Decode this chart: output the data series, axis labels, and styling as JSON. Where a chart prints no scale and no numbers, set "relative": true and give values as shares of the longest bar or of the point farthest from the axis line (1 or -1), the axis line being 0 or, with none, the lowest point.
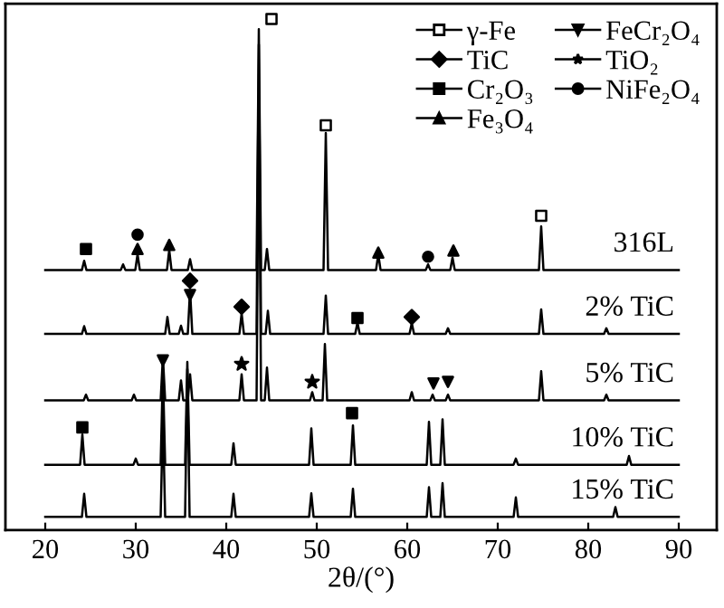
{
  "chart_data": {
    "type": "line",
    "relative": true,
    "xlabel": "2θ/(°)",
    "xlim": [
      15.6,
      94.2
    ],
    "xticks": [
      20,
      30,
      40,
      50,
      60,
      70,
      80,
      90
    ],
    "tick_labels": "x",
    "grid": false,
    "legend": "top right",
    "line_style": "solid",
    "marker": "none",
    "series": [
      {
        "name": "316L",
        "color": "#000000",
        "x": [
          20,
          24.05,
          24.3,
          24.55,
          28.35,
          28.6,
          28.85,
          29.95,
          30.2,
          30.45,
          33.45,
          33.7,
          33.95,
          35.75,
          36.0,
          36.25,
          43.35,
          43.6,
          43.85,
          44.25,
          44.5,
          44.75,
          50.75,
          51.0,
          51.25,
          56.55,
          56.8,
          57.05,
          62.05,
          62.3,
          62.55,
          64.75,
          65.0,
          65.25,
          74.55,
          74.8,
          75.05,
          90
        ],
        "values": [
          0.509,
          0.509,
          0.527,
          0.509,
          0.509,
          0.52,
          0.509,
          0.509,
          0.54,
          0.509,
          0.509,
          0.548,
          0.509,
          0.509,
          0.53,
          0.509,
          0.509,
          0.98,
          0.509,
          0.509,
          0.55,
          0.509,
          0.509,
          0.777,
          0.509,
          0.509,
          0.54,
          0.509,
          0.509,
          0.52,
          0.509,
          0.509,
          0.533,
          0.509,
          0.509,
          0.594,
          0.509,
          0.509
        ]
      },
      {
        "name": "2% TiC",
        "color": "#000000",
        "x": [
          20,
          24.05,
          24.3,
          24.55,
          33.25,
          33.5,
          33.75,
          34.75,
          35.0,
          35.25,
          35.75,
          36.0,
          36.25,
          41.45,
          41.7,
          41.95,
          43.35,
          43.6,
          43.85,
          44.35,
          44.6,
          44.85,
          50.75,
          51.0,
          51.25,
          54.25,
          54.5,
          54.75,
          60.25,
          60.5,
          60.75,
          64.25,
          64.5,
          64.75,
          74.55,
          74.8,
          75.05,
          81.75,
          82.0,
          82.25,
          90
        ],
        "values": [
          0.384,
          0.384,
          0.399,
          0.384,
          0.384,
          0.417,
          0.384,
          0.384,
          0.4,
          0.384,
          0.384,
          0.47,
          0.384,
          0.384,
          0.424,
          0.384,
          0.384,
          0.95,
          0.384,
          0.384,
          0.429,
          0.384,
          0.384,
          0.459,
          0.384,
          0.384,
          0.406,
          0.384,
          0.384,
          0.405,
          0.384,
          0.384,
          0.395,
          0.384,
          0.384,
          0.432,
          0.384,
          0.384,
          0.395,
          0.384,
          0.384
        ]
      },
      {
        "name": "5% TiC",
        "color": "#000000",
        "x": [
          20,
          24.25,
          24.5,
          24.75,
          29.55,
          29.8,
          30.05,
          32.75,
          33.0,
          33.25,
          34.75,
          35.0,
          35.25,
          35.75,
          36.0,
          36.25,
          41.45,
          41.7,
          41.95,
          43.35,
          43.6,
          43.85,
          44.25,
          44.5,
          44.75,
          49.25,
          49.5,
          49.75,
          50.65,
          50.9,
          51.15,
          60.25,
          60.5,
          60.75,
          62.55,
          62.8,
          63.05,
          64.25,
          64.5,
          64.75,
          74.55,
          74.8,
          75.05,
          81.75,
          82.0,
          82.25,
          90
        ],
        "values": [
          0.254,
          0.254,
          0.265,
          0.254,
          0.254,
          0.265,
          0.254,
          0.254,
          0.34,
          0.254,
          0.254,
          0.293,
          0.254,
          0.254,
          0.305,
          0.254,
          0.254,
          0.305,
          0.254,
          0.254,
          0.85,
          0.254,
          0.254,
          0.318,
          0.254,
          0.254,
          0.27,
          0.254,
          0.254,
          0.364,
          0.254,
          0.254,
          0.27,
          0.254,
          0.254,
          0.265,
          0.254,
          0.254,
          0.265,
          0.254,
          0.254,
          0.311,
          0.254,
          0.254,
          0.265,
          0.254,
          0.254
        ]
      },
      {
        "name": "10% TiC",
        "color": "#000000",
        "x": [
          20,
          23.85,
          24.1,
          24.35,
          29.75,
          30.0,
          30.25,
          32.75,
          33.0,
          33.25,
          35.45,
          35.7,
          35.95,
          40.55,
          40.8,
          41.05,
          49.15,
          49.4,
          49.65,
          53.75,
          54.0,
          54.25,
          62.15,
          62.4,
          62.65,
          63.65,
          63.9,
          64.15,
          71.75,
          72.0,
          72.25,
          84.25,
          84.5,
          84.75,
          90
        ],
        "values": [
          0.128,
          0.128,
          0.187,
          0.128,
          0.128,
          0.14,
          0.128,
          0.128,
          0.311,
          0.128,
          0.128,
          0.329,
          0.128,
          0.128,
          0.17,
          0.128,
          0.128,
          0.199,
          0.128,
          0.128,
          0.205,
          0.128,
          0.128,
          0.212,
          0.128,
          0.128,
          0.217,
          0.128,
          0.128,
          0.14,
          0.128,
          0.128,
          0.145,
          0.128,
          0.128
        ]
      },
      {
        "name": "15% TiC",
        "color": "#000000",
        "x": [
          20,
          24.05,
          24.3,
          24.55,
          32.75,
          33.0,
          33.25,
          35.45,
          35.7,
          35.95,
          40.55,
          40.8,
          41.05,
          49.15,
          49.4,
          49.65,
          53.75,
          54.0,
          54.25,
          62.15,
          62.4,
          62.65,
          63.65,
          63.9,
          64.15,
          71.75,
          72.0,
          72.25,
          82.75,
          83.0,
          83.25,
          90
        ],
        "values": [
          0.026,
          0.026,
          0.071,
          0.026,
          0.026,
          0.223,
          0.026,
          0.026,
          0.315,
          0.026,
          0.026,
          0.071,
          0.026,
          0.026,
          0.072,
          0.026,
          0.026,
          0.081,
          0.026,
          0.026,
          0.084,
          0.026,
          0.026,
          0.092,
          0.026,
          0.026,
          0.064,
          0.026,
          0.026,
          0.045,
          0.026,
          0.026
        ]
      },
      {
        "name": "γ-Fe",
        "type": "scatter",
        "marker": "square_open",
        "color": "#000000",
        "x": [
          45,
          51,
          74.8
        ],
        "values": [
          1,
          0.792,
          0.615
        ]
      },
      {
        "name": "TiC",
        "type": "scatter",
        "marker": "diamond",
        "color": "#000000",
        "x": [
          36,
          41.7,
          60.5
        ],
        "values": [
          0.488,
          0.437,
          0.417
        ]
      },
      {
        "name": "Cr₂O₃",
        "type": "scatter",
        "marker": "square",
        "color": "#000000",
        "x": [
          24.5,
          54.5,
          24.1,
          53.9
        ],
        "values": [
          0.55,
          0.415,
          0.201,
          0.229
        ]
      },
      {
        "name": "Fe₃O₄",
        "type": "scatter",
        "marker": "triangle",
        "color": "#000000",
        "x": [
          30.2,
          33.7,
          56.8,
          65.1
        ],
        "values": [
          0.55,
          0.558,
          0.543,
          0.547
        ]
      },
      {
        "name": "FeCr₂O₄",
        "type": "scatter",
        "marker": "triangle_down",
        "color": "#000000",
        "x": [
          36,
          33,
          62.9,
          64.5
        ],
        "values": [
          0.46,
          0.332,
          0.287,
          0.29
        ]
      },
      {
        "name": "TiO₂",
        "type": "scatter",
        "marker": "star",
        "color": "#000000",
        "x": [
          41.7,
          49.5
        ],
        "values": [
          0.325,
          0.29
        ]
      },
      {
        "name": "NiFe₂O₄",
        "type": "scatter",
        "marker": "circle",
        "color": "#000000",
        "x": [
          30.2,
          62.3
        ],
        "values": [
          0.578,
          0.535
        ]
      }
    ]
  }
}
